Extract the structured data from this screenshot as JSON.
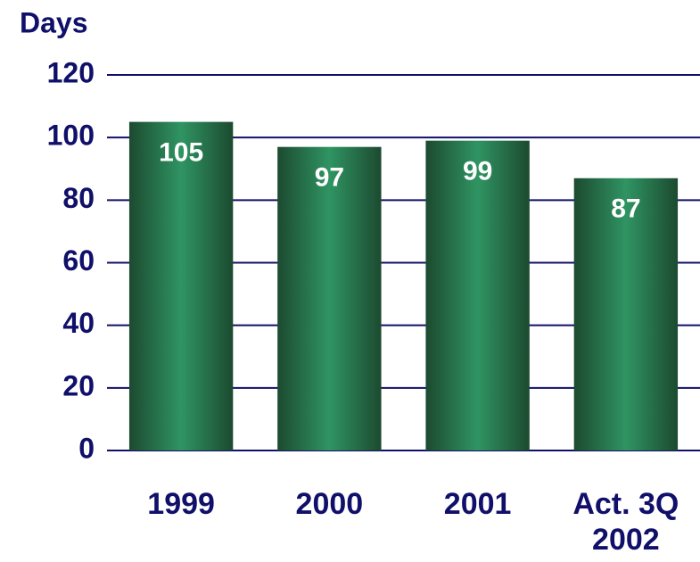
{
  "chart_data": {
    "type": "bar",
    "y_label": "Days",
    "categories": [
      "1999",
      "2000",
      "2001",
      "Act. 3Q 2002"
    ],
    "values": [
      105,
      97,
      99,
      87
    ],
    "color": "#2f9462",
    "ylim": [
      0,
      120
    ],
    "yticks": [
      0,
      20,
      40,
      60,
      80,
      100,
      120
    ],
    "grid": true
  }
}
